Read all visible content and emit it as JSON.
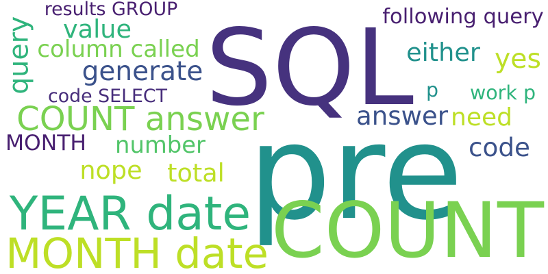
{
  "words": [
    {
      "text": "SQL",
      "color": "#46327e",
      "rotated": false
    },
    {
      "text": "pre",
      "color": "#21918c",
      "rotated": false
    },
    {
      "text": "COUNT",
      "color": "#7ad151",
      "rotated": false
    },
    {
      "text": "COUNT answer",
      "color": "#7ad151",
      "rotated": false
    },
    {
      "text": "YEAR date",
      "color": "#2fb47c",
      "rotated": false
    },
    {
      "text": "MONTH date",
      "color": "#bddf26",
      "rotated": false
    },
    {
      "text": "MONTH",
      "color": "#481f70",
      "rotated": false
    },
    {
      "text": "number",
      "color": "#52c569",
      "rotated": false
    },
    {
      "text": "nope",
      "color": "#bddf26",
      "rotated": false
    },
    {
      "text": "total",
      "color": "#bddf26",
      "rotated": false
    },
    {
      "text": "value",
      "color": "#2fb47c",
      "rotated": false
    },
    {
      "text": "column called",
      "color": "#7ad151",
      "rotated": false
    },
    {
      "text": "generate",
      "color": "#3b528b",
      "rotated": false
    },
    {
      "text": "code SELECT",
      "color": "#472d7b",
      "rotated": false
    },
    {
      "text": "results GROUP",
      "color": "#481f70",
      "rotated": false
    },
    {
      "text": "query",
      "color": "#2fb47c",
      "rotated": true
    },
    {
      "text": "following query",
      "color": "#481f70",
      "rotated": false
    },
    {
      "text": "either",
      "color": "#21918c",
      "rotated": false
    },
    {
      "text": "yes",
      "color": "#bddf26",
      "rotated": false
    },
    {
      "text": "p",
      "color": "#21918c",
      "rotated": false
    },
    {
      "text": "work p",
      "color": "#2fb47c",
      "rotated": false
    },
    {
      "text": "answer",
      "color": "#3b528b",
      "rotated": false
    },
    {
      "text": "need",
      "color": "#bddf26",
      "rotated": false
    },
    {
      "text": "code",
      "color": "#3b528b",
      "rotated": false
    }
  ]
}
